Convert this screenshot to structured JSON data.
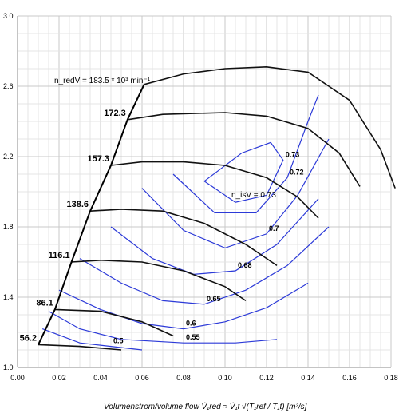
{
  "chart_data": {
    "type": "line",
    "xlim": [
      0.0,
      0.18
    ],
    "ylim": [
      1.0,
      3.0
    ],
    "x_ticks": [
      "0.00",
      "0.02",
      "0.04",
      "0.06",
      "0.08",
      "0.10",
      "0.12",
      "0.14",
      "0.16",
      "0.18"
    ],
    "y_ticks": [
      "1.0",
      "1.4",
      "1.8",
      "2.2",
      "2.6",
      "3.0"
    ],
    "grid": true,
    "xlabel": "Volumenstrom/volume flow  V̇₁red ≈ V̇₁t √(T₁ref / T₁t)  [m³/s]",
    "speed_annotation": "n_redV = 183.5 * 10³ min⁻¹",
    "efficiency_annotation": "η_isV = 0.73",
    "speed_lines": [
      {
        "label": "56.2",
        "points": [
          [
            0.01,
            1.13
          ],
          [
            0.03,
            1.12
          ],
          [
            0.05,
            1.1
          ]
        ]
      },
      {
        "label": "86.1",
        "points": [
          [
            0.018,
            1.33
          ],
          [
            0.04,
            1.32
          ],
          [
            0.06,
            1.26
          ],
          [
            0.075,
            1.18
          ]
        ]
      },
      {
        "label": "116.1",
        "points": [
          [
            0.026,
            1.6
          ],
          [
            0.04,
            1.61
          ],
          [
            0.06,
            1.6
          ],
          [
            0.08,
            1.55
          ],
          [
            0.1,
            1.46
          ],
          [
            0.11,
            1.38
          ]
        ]
      },
      {
        "label": "138.6",
        "points": [
          [
            0.035,
            1.89
          ],
          [
            0.05,
            1.9
          ],
          [
            0.07,
            1.89
          ],
          [
            0.09,
            1.82
          ],
          [
            0.11,
            1.7
          ],
          [
            0.125,
            1.58
          ]
        ]
      },
      {
        "label": "157.3",
        "points": [
          [
            0.045,
            2.15
          ],
          [
            0.06,
            2.17
          ],
          [
            0.08,
            2.17
          ],
          [
            0.1,
            2.15
          ],
          [
            0.12,
            2.08
          ],
          [
            0.135,
            1.97
          ],
          [
            0.145,
            1.85
          ]
        ]
      },
      {
        "label": "172.3",
        "points": [
          [
            0.053,
            2.41
          ],
          [
            0.07,
            2.44
          ],
          [
            0.1,
            2.45
          ],
          [
            0.12,
            2.43
          ],
          [
            0.14,
            2.36
          ],
          [
            0.155,
            2.22
          ],
          [
            0.165,
            2.03
          ]
        ]
      },
      {
        "label": "183.5",
        "points": [
          [
            0.061,
            2.61
          ],
          [
            0.08,
            2.67
          ],
          [
            0.1,
            2.7
          ],
          [
            0.12,
            2.71
          ],
          [
            0.14,
            2.68
          ],
          [
            0.16,
            2.52
          ],
          [
            0.175,
            2.24
          ],
          [
            0.182,
            2.02
          ]
        ]
      }
    ],
    "surge_line": [
      [
        0.01,
        1.13
      ],
      [
        0.018,
        1.33
      ],
      [
        0.026,
        1.6
      ],
      [
        0.035,
        1.89
      ],
      [
        0.045,
        2.15
      ],
      [
        0.053,
        2.41
      ],
      [
        0.061,
        2.61
      ]
    ],
    "efficiency_contours": [
      {
        "label": "0.5",
        "points": [
          [
            0.012,
            1.22
          ],
          [
            0.03,
            1.14
          ],
          [
            0.045,
            1.12
          ],
          [
            0.06,
            1.1
          ]
        ]
      },
      {
        "label": "0.55",
        "points": [
          [
            0.015,
            1.32
          ],
          [
            0.03,
            1.22
          ],
          [
            0.05,
            1.16
          ],
          [
            0.08,
            1.14
          ],
          [
            0.105,
            1.14
          ],
          [
            0.125,
            1.16
          ]
        ]
      },
      {
        "label": "0.6",
        "points": [
          [
            0.02,
            1.44
          ],
          [
            0.04,
            1.33
          ],
          [
            0.06,
            1.25
          ],
          [
            0.08,
            1.22
          ],
          [
            0.1,
            1.26
          ],
          [
            0.12,
            1.34
          ],
          [
            0.14,
            1.48
          ]
        ]
      },
      {
        "label": "0.65",
        "points": [
          [
            0.03,
            1.62
          ],
          [
            0.05,
            1.48
          ],
          [
            0.07,
            1.38
          ],
          [
            0.09,
            1.36
          ],
          [
            0.11,
            1.44
          ],
          [
            0.13,
            1.58
          ],
          [
            0.15,
            1.8
          ]
        ]
      },
      {
        "label": "0.68",
        "points": [
          [
            0.045,
            1.8
          ],
          [
            0.065,
            1.62
          ],
          [
            0.085,
            1.53
          ],
          [
            0.105,
            1.55
          ],
          [
            0.125,
            1.7
          ],
          [
            0.145,
            1.96
          ]
        ]
      },
      {
        "label": "0.7",
        "points": [
          [
            0.06,
            2.02
          ],
          [
            0.08,
            1.78
          ],
          [
            0.1,
            1.68
          ],
          [
            0.12,
            1.76
          ],
          [
            0.135,
            1.98
          ],
          [
            0.15,
            2.3
          ]
        ]
      },
      {
        "label": "0.72",
        "points": [
          [
            0.075,
            2.1
          ],
          [
            0.095,
            1.88
          ],
          [
            0.115,
            1.88
          ],
          [
            0.13,
            2.08
          ],
          [
            0.14,
            2.4
          ],
          [
            0.145,
            2.55
          ]
        ]
      },
      {
        "label": "0.73",
        "points": [
          [
            0.09,
            2.06
          ],
          [
            0.105,
            1.94
          ],
          [
            0.12,
            1.98
          ],
          [
            0.128,
            2.18
          ],
          [
            0.122,
            2.28
          ],
          [
            0.108,
            2.22
          ],
          [
            0.09,
            2.06
          ]
        ]
      }
    ]
  }
}
